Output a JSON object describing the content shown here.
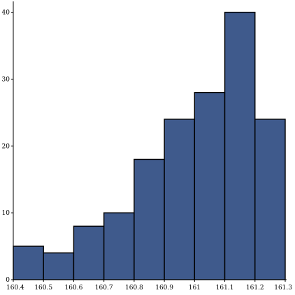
{
  "chart_data": {
    "type": "bar",
    "subtype": "histogram",
    "title": "",
    "xlabel": "",
    "ylabel": "",
    "bin_edges": [
      160.4,
      160.5,
      160.6,
      160.7,
      160.8,
      160.9,
      161.0,
      161.1,
      161.2,
      161.3
    ],
    "values": [
      5,
      4,
      8,
      10,
      18,
      24,
      28,
      40,
      24
    ],
    "xlim": [
      160.4,
      161.3
    ],
    "ylim": [
      0,
      41
    ],
    "x_ticks": [
      "160.4",
      "160.5",
      "160.6",
      "160.7",
      "160.8",
      "160.9",
      "161",
      "161.1",
      "161.2",
      "161.3"
    ],
    "y_ticks": [
      "0",
      "10",
      "20",
      "30",
      "40"
    ],
    "y_tick_values": [
      0,
      10,
      20,
      30,
      40
    ],
    "grid": false,
    "legend": "none",
    "colors": {
      "bar_fill": "#3f5a8c",
      "bar_edge": "#000000",
      "axis": "#000000",
      "background": "#ffffff"
    }
  }
}
